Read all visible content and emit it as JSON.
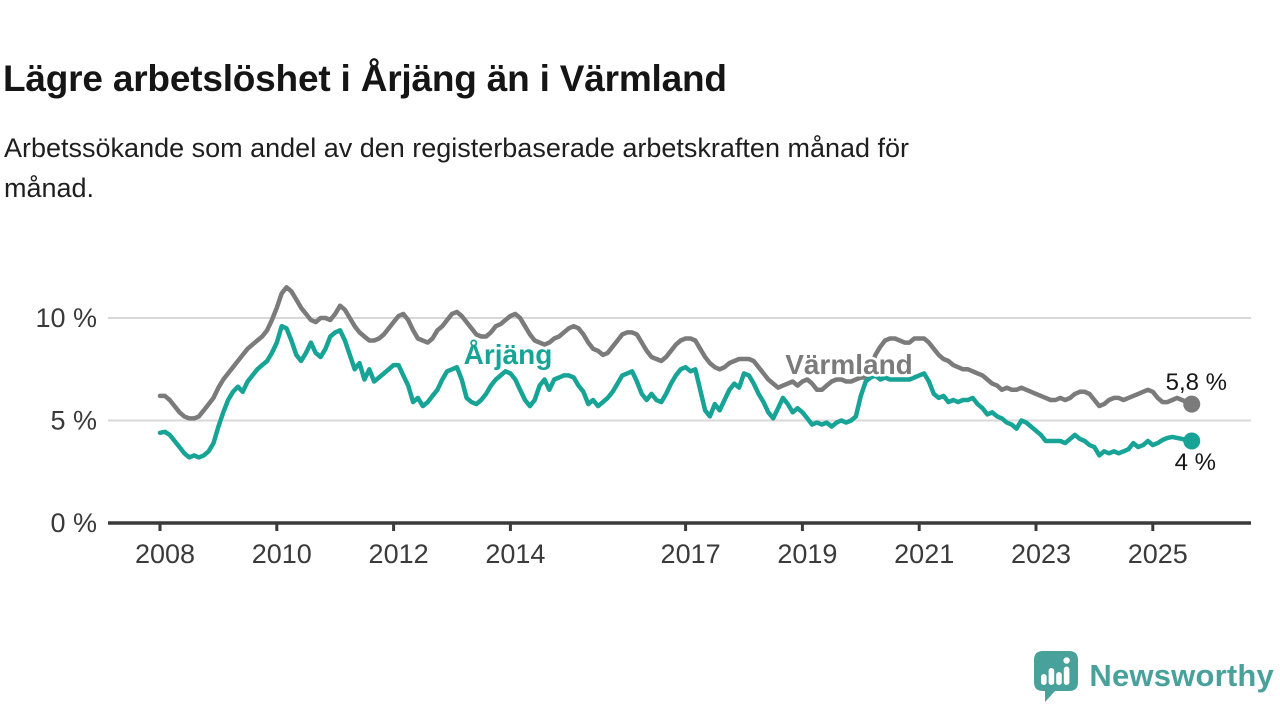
{
  "header": {
    "title": "Lägre arbetslöshet i Årjäng än i Värmland",
    "subtitle_line1": "Arbetssökande som andel av den registerbaserade arbetskraften månad för",
    "subtitle_line2": "månad."
  },
  "footer": {
    "brand": "Newsworthy",
    "brand_color": "#48a29b",
    "logo_icon": "newsworthy-speech-bubble-bar-chart-icon"
  },
  "chart_data": {
    "type": "line",
    "title": "Lägre arbetslöshet i Årjäng än i Värmland",
    "subtitle": "Arbetssökande som andel av den registerbaserade arbetskraften månad för månad.",
    "unit": "percent",
    "frequency": "monthly",
    "x_start": "2008-01",
    "x_end": "2025-09",
    "ylim": [
      0,
      12
    ],
    "grid": "horizontal",
    "legend_position": "inline-labels",
    "yticks": [
      {
        "value": 0,
        "label": "0 %"
      },
      {
        "value": 5,
        "label": "5 %"
      },
      {
        "value": 10,
        "label": "10 %"
      }
    ],
    "xticks": [
      {
        "value": 2008,
        "label": "2008"
      },
      {
        "value": 2010,
        "label": "2010"
      },
      {
        "value": 2012,
        "label": "2012"
      },
      {
        "value": 2014,
        "label": "2014"
      },
      {
        "value": 2017,
        "label": "2017"
      },
      {
        "value": 2019,
        "label": "2019"
      },
      {
        "value": 2021,
        "label": "2021"
      },
      {
        "value": 2023,
        "label": "2023"
      },
      {
        "value": 2025,
        "label": "2025"
      }
    ],
    "series": [
      {
        "id": "varmland",
        "name": "Värmland",
        "color": "#7b7b7b",
        "end_label": "5,8 %",
        "end_value": 5.8,
        "values": [
          6.2,
          6.2,
          6.0,
          5.7,
          5.4,
          5.2,
          5.1,
          5.1,
          5.2,
          5.5,
          5.8,
          6.1,
          6.6,
          7.0,
          7.3,
          7.6,
          7.9,
          8.2,
          8.5,
          8.7,
          8.9,
          9.1,
          9.4,
          9.9,
          10.5,
          11.2,
          11.5,
          11.3,
          10.9,
          10.5,
          10.2,
          9.9,
          9.8,
          10.0,
          10.0,
          9.9,
          10.2,
          10.6,
          10.4,
          10.0,
          9.6,
          9.3,
          9.1,
          8.9,
          8.9,
          9.0,
          9.2,
          9.5,
          9.8,
          10.1,
          10.2,
          9.9,
          9.4,
          9.0,
          8.9,
          8.8,
          9.0,
          9.4,
          9.6,
          9.9,
          10.2,
          10.3,
          10.1,
          9.8,
          9.5,
          9.2,
          9.1,
          9.1,
          9.3,
          9.6,
          9.7,
          9.9,
          10.1,
          10.2,
          10.0,
          9.6,
          9.2,
          8.9,
          8.8,
          8.7,
          8.8,
          9.0,
          9.1,
          9.3,
          9.5,
          9.6,
          9.5,
          9.2,
          8.8,
          8.5,
          8.4,
          8.2,
          8.3,
          8.6,
          8.9,
          9.2,
          9.3,
          9.3,
          9.2,
          8.8,
          8.4,
          8.1,
          8.0,
          7.9,
          8.1,
          8.4,
          8.7,
          8.9,
          9.0,
          9.0,
          8.9,
          8.5,
          8.1,
          7.8,
          7.6,
          7.5,
          7.6,
          7.8,
          7.9,
          8.0,
          8.0,
          8.0,
          7.9,
          7.6,
          7.3,
          7.0,
          6.8,
          6.6,
          6.7,
          6.8,
          6.9,
          6.7,
          6.9,
          7.0,
          6.8,
          6.5,
          6.5,
          6.7,
          6.9,
          7.0,
          7.0,
          6.9,
          6.9,
          7.0,
          7.1,
          7.1,
          7.5,
          8.2,
          8.6,
          8.9,
          9.0,
          9.0,
          8.9,
          8.8,
          8.8,
          9.0,
          9.0,
          9.0,
          8.8,
          8.5,
          8.2,
          8.0,
          7.9,
          7.7,
          7.6,
          7.5,
          7.5,
          7.4,
          7.3,
          7.2,
          7.0,
          6.8,
          6.7,
          6.5,
          6.6,
          6.5,
          6.5,
          6.6,
          6.5,
          6.4,
          6.3,
          6.2,
          6.1,
          6.0,
          6.0,
          6.1,
          6.0,
          6.1,
          6.3,
          6.4,
          6.4,
          6.3,
          6.0,
          5.7,
          5.8,
          6.0,
          6.1,
          6.1,
          6.0,
          6.1,
          6.2,
          6.3,
          6.4,
          6.5,
          6.4,
          6.1,
          5.9,
          5.9,
          6.0,
          6.1,
          6.0,
          5.9,
          5.8
        ]
      },
      {
        "id": "arjang",
        "name": "Årjäng",
        "color": "#17a496",
        "end_label": "4 %",
        "end_value": 4.0,
        "values": [
          4.4,
          4.45,
          4.3,
          4.0,
          3.7,
          3.4,
          3.2,
          3.3,
          3.2,
          3.3,
          3.5,
          3.9,
          4.7,
          5.4,
          6.0,
          6.4,
          6.65,
          6.4,
          6.9,
          7.2,
          7.5,
          7.7,
          7.9,
          8.3,
          8.8,
          9.6,
          9.5,
          8.9,
          8.2,
          7.9,
          8.3,
          8.8,
          8.3,
          8.1,
          8.5,
          9.1,
          9.3,
          9.4,
          8.9,
          8.2,
          7.5,
          7.8,
          7.0,
          7.5,
          6.9,
          7.1,
          7.3,
          7.5,
          7.7,
          7.7,
          7.2,
          6.7,
          5.9,
          6.1,
          5.7,
          5.9,
          6.2,
          6.5,
          7.0,
          7.4,
          7.5,
          7.6,
          7.0,
          6.1,
          5.9,
          5.8,
          6.0,
          6.3,
          6.7,
          7.0,
          7.2,
          7.4,
          7.3,
          7.0,
          6.5,
          6.0,
          5.7,
          6.0,
          6.7,
          7.0,
          6.5,
          7.0,
          7.1,
          7.2,
          7.2,
          7.1,
          6.7,
          6.4,
          5.8,
          6.0,
          5.7,
          5.9,
          6.1,
          6.4,
          6.8,
          7.2,
          7.3,
          7.4,
          6.9,
          6.3,
          6.0,
          6.3,
          6.0,
          5.9,
          6.3,
          6.8,
          7.2,
          7.5,
          7.6,
          7.4,
          7.5,
          6.5,
          5.5,
          5.2,
          5.8,
          5.5,
          6.0,
          6.5,
          6.8,
          6.6,
          7.3,
          7.2,
          6.8,
          6.3,
          5.9,
          5.4,
          5.1,
          5.6,
          6.1,
          5.8,
          5.4,
          5.6,
          5.4,
          5.1,
          4.8,
          4.9,
          4.8,
          4.9,
          4.7,
          4.9,
          5.0,
          4.9,
          5.0,
          5.2,
          6.2,
          6.9,
          7.1,
          7.2,
          7.0,
          7.1,
          7.0,
          7.0,
          7.0,
          7.0,
          7.0,
          7.1,
          7.2,
          7.3,
          6.9,
          6.3,
          6.1,
          6.2,
          5.9,
          6.0,
          5.9,
          6.0,
          6.0,
          6.1,
          5.8,
          5.6,
          5.3,
          5.4,
          5.2,
          5.1,
          4.9,
          4.8,
          4.6,
          5.0,
          4.9,
          4.7,
          4.5,
          4.3,
          4.0,
          4.0,
          4.0,
          4.0,
          3.9,
          4.1,
          4.3,
          4.1,
          4.0,
          3.8,
          3.7,
          3.3,
          3.5,
          3.4,
          3.5,
          3.4,
          3.5,
          3.6,
          3.9,
          3.7,
          3.8,
          4.0,
          3.8,
          3.9,
          4.05,
          4.15,
          4.2,
          4.15,
          4.1,
          4.05,
          4.0
        ]
      }
    ]
  }
}
